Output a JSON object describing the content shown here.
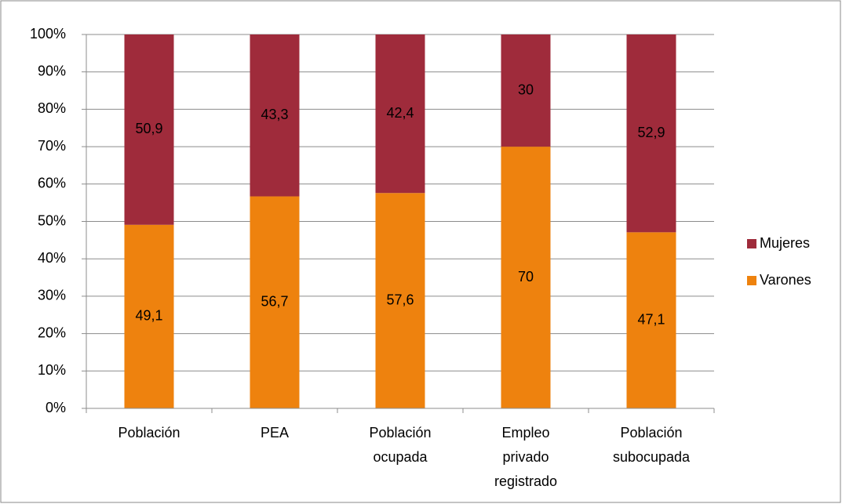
{
  "chart_data": {
    "type": "stacked_bar_100",
    "categories": [
      "Población",
      "PEA",
      "Población ocupada",
      "Empleo privado registrado",
      "Población subocupada"
    ],
    "series": [
      {
        "name": "Varones",
        "color": "#ee820e",
        "values": [
          49.1,
          56.7,
          57.6,
          70,
          47.1
        ],
        "value_labels": [
          "49,1",
          "56,7",
          "57,6",
          "70",
          "47,1"
        ]
      },
      {
        "name": "Mujeres",
        "color": "#9f2b3b",
        "values": [
          50.9,
          43.3,
          42.4,
          30,
          52.9
        ],
        "value_labels": [
          "50,9",
          "43,3",
          "42,4",
          "30",
          "52,9"
        ]
      }
    ],
    "ylim": [
      0,
      100
    ],
    "yticks": [
      {
        "value": 0,
        "label": "0%"
      },
      {
        "value": 10,
        "label": "10%"
      },
      {
        "value": 20,
        "label": "20%"
      },
      {
        "value": 30,
        "label": "30%"
      },
      {
        "value": 40,
        "label": "40%"
      },
      {
        "value": 50,
        "label": "50%"
      },
      {
        "value": 60,
        "label": "60%"
      },
      {
        "value": 70,
        "label": "70%"
      },
      {
        "value": 80,
        "label": "80%"
      },
      {
        "value": 90,
        "label": "90%"
      },
      {
        "value": 100,
        "label": "100%"
      }
    ],
    "grid": true,
    "legend": "right"
  }
}
